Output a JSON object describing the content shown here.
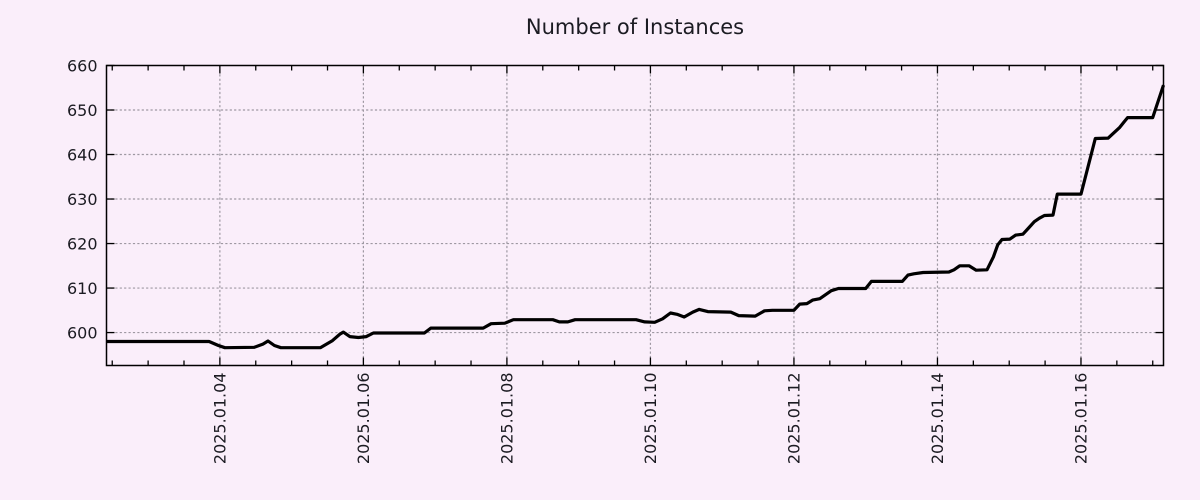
{
  "title": "Number of Instances",
  "style": {
    "background": "#faeefa",
    "axis_color": "#000000",
    "grid_color": "#9e98a2",
    "text_color": "#1b1b22",
    "line_color": "#000000"
  },
  "chart_data": {
    "type": "line",
    "title": "Number of Instances",
    "xlabel": "",
    "ylabel": "",
    "legend": "none",
    "grid": "dotted (major ticks only)",
    "x_axis": {
      "unit": "day of January 2025 (fractional)",
      "range": [
        2.42,
        17.15
      ],
      "major_ticks": [
        {
          "day": 4,
          "label": "2025.01.04"
        },
        {
          "day": 6,
          "label": "2025.01.06"
        },
        {
          "day": 8,
          "label": "2025.01.08"
        },
        {
          "day": 10,
          "label": "2025.01.10"
        },
        {
          "day": 12,
          "label": "2025.01.12"
        },
        {
          "day": 14,
          "label": "2025.01.14"
        },
        {
          "day": 16,
          "label": "2025.01.16"
        }
      ],
      "minor_tick_interval": 0.5
    },
    "y_axis": {
      "range": [
        592.6,
        660
      ],
      "major_ticks": [
        {
          "value": 600,
          "label": "600"
        },
        {
          "value": 610,
          "label": "610"
        },
        {
          "value": 620,
          "label": "620"
        },
        {
          "value": 630,
          "label": "630"
        },
        {
          "value": 640,
          "label": "640"
        },
        {
          "value": 650,
          "label": "650"
        },
        {
          "value": 660,
          "label": "660"
        }
      ]
    },
    "series": [
      {
        "name": "instances",
        "color": "#000000",
        "line_width": 3.2,
        "points": [
          [
            2.42,
            598
          ],
          [
            3.85,
            598
          ],
          [
            3.98,
            597.1
          ],
          [
            4.07,
            596.6
          ],
          [
            4.48,
            596.7
          ],
          [
            4.6,
            597.4
          ],
          [
            4.67,
            598.1
          ],
          [
            4.76,
            597.1
          ],
          [
            4.85,
            596.6
          ],
          [
            5.4,
            596.6
          ],
          [
            5.57,
            598.2
          ],
          [
            5.67,
            599.6
          ],
          [
            5.72,
            600.1
          ],
          [
            5.81,
            599.1
          ],
          [
            5.93,
            598.9
          ],
          [
            6.04,
            599.1
          ],
          [
            6.14,
            599.9
          ],
          [
            6.85,
            599.9
          ],
          [
            6.94,
            601
          ],
          [
            7.67,
            601
          ],
          [
            7.78,
            602
          ],
          [
            7.97,
            602.1
          ],
          [
            8.09,
            602.9
          ],
          [
            8.64,
            602.9
          ],
          [
            8.73,
            602.4
          ],
          [
            8.85,
            602.4
          ],
          [
            8.95,
            602.9
          ],
          [
            9.8,
            602.9
          ],
          [
            9.92,
            602.4
          ],
          [
            10.06,
            602.3
          ],
          [
            10.17,
            603.1
          ],
          [
            10.28,
            604.4
          ],
          [
            10.37,
            604.1
          ],
          [
            10.47,
            603.5
          ],
          [
            10.59,
            604.6
          ],
          [
            10.68,
            605.2
          ],
          [
            10.8,
            604.7
          ],
          [
            11.12,
            604.6
          ],
          [
            11.23,
            603.8
          ],
          [
            11.46,
            603.7
          ],
          [
            11.59,
            604.9
          ],
          [
            11.7,
            605
          ],
          [
            12.0,
            605
          ],
          [
            12.08,
            606.4
          ],
          [
            12.18,
            606.5
          ],
          [
            12.26,
            607.3
          ],
          [
            12.36,
            607.6
          ],
          [
            12.52,
            609.4
          ],
          [
            12.62,
            609.9
          ],
          [
            13.0,
            609.9
          ],
          [
            13.08,
            611.5
          ],
          [
            13.51,
            611.5
          ],
          [
            13.59,
            612.9
          ],
          [
            13.67,
            613.2
          ],
          [
            13.8,
            613.5
          ],
          [
            14.16,
            613.6
          ],
          [
            14.23,
            614.1
          ],
          [
            14.31,
            615
          ],
          [
            14.44,
            615
          ],
          [
            14.54,
            614
          ],
          [
            14.69,
            614.1
          ],
          [
            14.78,
            617
          ],
          [
            14.84,
            619.7
          ],
          [
            14.9,
            620.9
          ],
          [
            15.01,
            621
          ],
          [
            15.09,
            621.9
          ],
          [
            15.19,
            622.1
          ],
          [
            15.27,
            623.5
          ],
          [
            15.35,
            624.9
          ],
          [
            15.42,
            625.7
          ],
          [
            15.49,
            626.3
          ],
          [
            15.61,
            626.4
          ],
          [
            15.67,
            631.1
          ],
          [
            16.0,
            631.1
          ],
          [
            16.2,
            643.6
          ],
          [
            16.38,
            643.7
          ],
          [
            16.46,
            644.9
          ],
          [
            16.54,
            646.1
          ],
          [
            16.6,
            647.3
          ],
          [
            16.65,
            648.3
          ],
          [
            17.0,
            648.3
          ],
          [
            17.15,
            655.6
          ]
        ]
      }
    ]
  }
}
